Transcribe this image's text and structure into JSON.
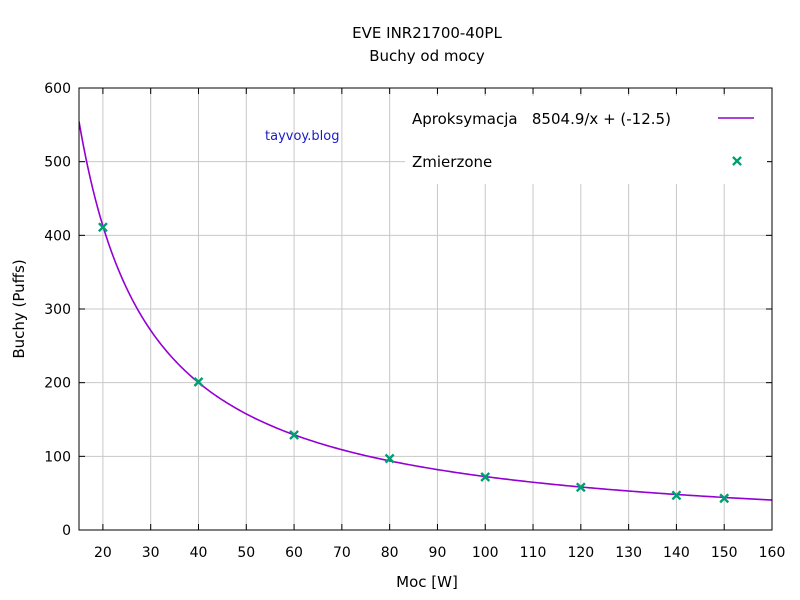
{
  "chart_data": {
    "type": "line",
    "title": "EVE INR21700-40PL",
    "subtitle": "Buchy od mocy",
    "xlabel": "Moc [W]",
    "ylabel": "Buchy (Puffs)",
    "xlim": [
      15,
      160
    ],
    "ylim": [
      0,
      600
    ],
    "x_ticks": [
      20,
      30,
      40,
      50,
      60,
      70,
      80,
      90,
      100,
      110,
      120,
      130,
      140,
      150,
      160
    ],
    "y_ticks": [
      0,
      100,
      200,
      300,
      400,
      500,
      600
    ],
    "grid": true,
    "legend_position": "top-right",
    "annotation": "tayvoy.blog",
    "series": [
      {
        "name": "Aproksymacja   8504.9/x + (-12.5)",
        "kind": "line",
        "color": "#9400d3",
        "function": {
          "a": 8504.9,
          "b": -12.5
        }
      },
      {
        "name": "Zmierzone",
        "kind": "points",
        "color": "#009e73",
        "x": [
          20,
          40,
          60,
          80,
          100,
          120,
          140,
          150
        ],
        "y": [
          411,
          201,
          129,
          97,
          72,
          58,
          47,
          43
        ]
      }
    ],
    "colors": {
      "fit_line": "#9400d3",
      "measured_points": "#009e73",
      "annotation": "#1a1acc",
      "grid": "#c8c8c8"
    }
  }
}
